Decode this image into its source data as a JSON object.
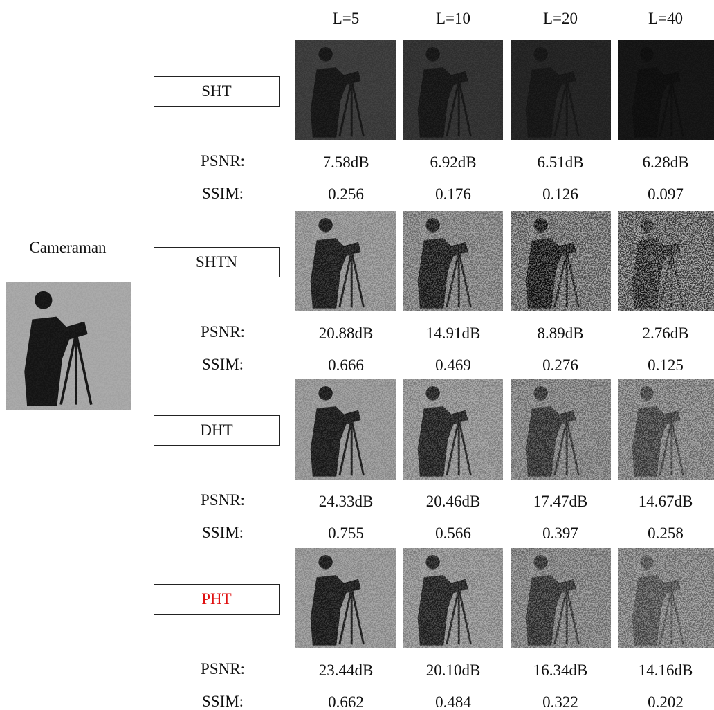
{
  "original_label": "Cameraman",
  "columns": [
    "L=5",
    "L=10",
    "L=20",
    "L=40"
  ],
  "methods": [
    {
      "name": "SHT",
      "psnr_label": "PSNR:",
      "ssim_label": "SSIM:",
      "psnr": [
        "7.58dB",
        "6.92dB",
        "6.51dB",
        "6.28dB"
      ],
      "ssim": [
        "0.256",
        "0.176",
        "0.126",
        "0.097"
      ]
    },
    {
      "name": "SHTN",
      "psnr_label": "PSNR:",
      "ssim_label": "SSIM:",
      "psnr": [
        "20.88dB",
        "14.91dB",
        "8.89dB",
        "2.76dB"
      ],
      "ssim": [
        "0.666",
        "0.469",
        "0.276",
        "0.125"
      ]
    },
    {
      "name": "DHT",
      "psnr_label": "PSNR:",
      "ssim_label": "SSIM:",
      "psnr": [
        "24.33dB",
        "20.46dB",
        "17.47dB",
        "14.67dB"
      ],
      "ssim": [
        "0.755",
        "0.566",
        "0.397",
        "0.258"
      ]
    },
    {
      "name": "PHT",
      "psnr_label": "PSNR:",
      "ssim_label": "SSIM:",
      "psnr": [
        "23.44dB",
        "20.10dB",
        "16.34dB",
        "14.16dB"
      ],
      "ssim": [
        "0.662",
        "0.484",
        "0.322",
        "0.202"
      ]
    }
  ]
}
